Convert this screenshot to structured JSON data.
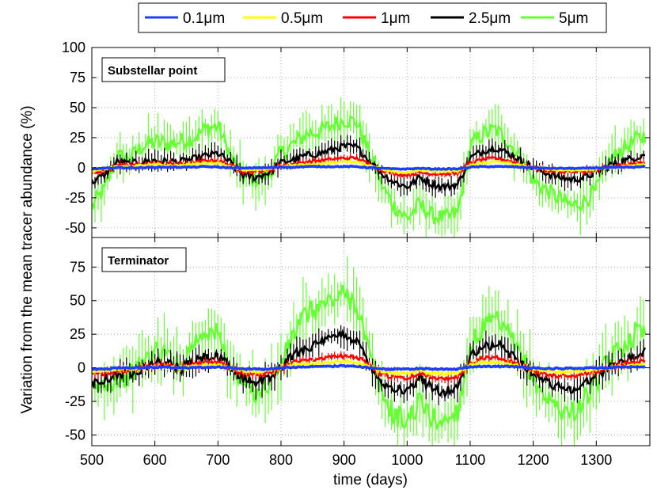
{
  "chart_data": {
    "type": "line",
    "xlabel": "time (days)",
    "ylabel": "Variation from the mean tracer abundance (%)",
    "xlim": [
      500,
      1385
    ],
    "xticks": [
      "500",
      "600",
      "700",
      "800",
      "900",
      "1000",
      "1100",
      "1200",
      "1300"
    ],
    "grid": true,
    "legend": {
      "placement": "top-center",
      "entries": [
        {
          "label": "0.1μm",
          "color": "#1f3fff"
        },
        {
          "label": "0.5μm",
          "color": "#ffff00"
        },
        {
          "label": "1μm",
          "color": "#ff0000"
        },
        {
          "label": "2.5μm",
          "color": "#000000"
        },
        {
          "label": "5μm",
          "color": "#66ff33"
        }
      ]
    },
    "x": [
      500,
      520,
      540,
      560,
      580,
      600,
      620,
      640,
      660,
      680,
      700,
      720,
      740,
      760,
      780,
      800,
      820,
      840,
      860,
      880,
      900,
      920,
      940,
      960,
      980,
      1000,
      1020,
      1040,
      1060,
      1080,
      1100,
      1120,
      1140,
      1160,
      1180,
      1200,
      1220,
      1240,
      1260,
      1280,
      1300,
      1320,
      1340,
      1360,
      1380
    ],
    "panels": [
      {
        "label": "Substellar point",
        "ylim": [
          -58,
          100
        ],
        "yticks": [
          "100",
          "75",
          "50",
          "25",
          "0",
          "-25",
          "-50"
        ],
        "series": [
          {
            "name": "0.1μm",
            "values": [
              -1,
              -0.5,
              0,
              0,
              0,
              0.5,
              0.5,
              0.5,
              0.5,
              1,
              0.5,
              0,
              -0.5,
              0,
              0,
              0.5,
              0.5,
              1,
              1,
              1,
              1,
              1,
              0,
              -0.5,
              -1,
              -1,
              -0.5,
              -1,
              -1,
              -1,
              0.5,
              1,
              1,
              1,
              0.5,
              0,
              -0.5,
              -0.5,
              -0.5,
              -0.5,
              0,
              0,
              0.5,
              0.5,
              1
            ]
          },
          {
            "name": "0.5μm",
            "values": [
              -3,
              -1,
              1,
              1,
              2,
              3,
              2,
              2,
              3,
              4,
              4,
              1,
              -2,
              -2,
              -1,
              1,
              2,
              3,
              3,
              4,
              5,
              5,
              2,
              -1,
              -3,
              -4,
              -2,
              -3,
              -3,
              -3,
              2,
              4,
              5,
              4,
              2,
              0,
              -1,
              -2,
              -2,
              -2,
              -1,
              0,
              1,
              2,
              3
            ]
          },
          {
            "name": "1μm",
            "values": [
              -5,
              -2,
              2,
              2,
              3,
              4,
              3,
              3,
              4,
              6,
              6,
              2,
              -3,
              -3,
              -2,
              2,
              3,
              5,
              6,
              7,
              8,
              8,
              3,
              -2,
              -5,
              -6,
              -4,
              -5,
              -5,
              -5,
              4,
              7,
              8,
              6,
              3,
              0,
              -2,
              -3,
              -3,
              -3,
              -2,
              1,
              2,
              3,
              5
            ]
          },
          {
            "name": "2.5μm",
            "values": [
              -12,
              -6,
              5,
              3,
              5,
              6,
              5,
              5,
              7,
              10,
              12,
              4,
              -6,
              -8,
              -4,
              4,
              7,
              10,
              12,
              15,
              18,
              17,
              6,
              -5,
              -12,
              -16,
              -8,
              -14,
              -16,
              -14,
              8,
              14,
              17,
              12,
              6,
              0,
              -4,
              -8,
              -10,
              -8,
              -4,
              2,
              5,
              8,
              12
            ]
          },
          {
            "name": "5μm",
            "values": [
              -32,
              -18,
              10,
              8,
              18,
              22,
              20,
              22,
              25,
              32,
              35,
              10,
              -8,
              -10,
              -6,
              12,
              20,
              28,
              30,
              35,
              40,
              38,
              12,
              -15,
              -32,
              -42,
              -30,
              -40,
              -42,
              -38,
              18,
              28,
              32,
              22,
              8,
              -10,
              -18,
              -25,
              -32,
              -28,
              -18,
              5,
              15,
              22,
              28
            ]
          }
        ]
      },
      {
        "label": "Terminator",
        "ylim": [
          -58,
          97
        ],
        "yticks": [
          "75",
          "50",
          "25",
          "0",
          "-25",
          "-50"
        ],
        "series": [
          {
            "name": "0.1μm",
            "values": [
              -1,
              -1,
              0,
              0,
              0,
              0.5,
              0.5,
              0,
              0,
              0.5,
              0.5,
              0,
              -1,
              -1,
              -1,
              0,
              0.5,
              1,
              1,
              1,
              1.5,
              1,
              0,
              -1,
              -1,
              -1,
              -0.5,
              -1,
              -1,
              -1,
              0.5,
              1,
              1,
              1,
              0.5,
              0,
              -0.5,
              -0.5,
              -0.5,
              -0.5,
              0,
              0,
              0.5,
              0.5,
              1
            ]
          },
          {
            "name": "0.5μm",
            "values": [
              -3,
              -2,
              -1,
              -1,
              0,
              1,
              1,
              0,
              1,
              2,
              2,
              0,
              -2,
              -3,
              -2,
              0,
              2,
              3,
              3,
              4,
              5,
              4,
              1,
              -3,
              -4,
              -4,
              -2,
              -4,
              -4,
              -4,
              2,
              4,
              4,
              3,
              1,
              -1,
              -2,
              -3,
              -3,
              -2,
              -1,
              0,
              1,
              2,
              3
            ]
          },
          {
            "name": "1μm",
            "values": [
              -5,
              -4,
              -2,
              -2,
              0,
              2,
              2,
              0,
              2,
              4,
              4,
              0,
              -4,
              -5,
              -4,
              0,
              4,
              6,
              7,
              8,
              9,
              8,
              2,
              -5,
              -7,
              -8,
              -4,
              -7,
              -8,
              -7,
              4,
              7,
              8,
              6,
              2,
              -2,
              -5,
              -6,
              -6,
              -5,
              -2,
              0,
              2,
              4,
              6
            ]
          },
          {
            "name": "2.5μm",
            "values": [
              -10,
              -8,
              -5,
              -4,
              0,
              4,
              4,
              -1,
              4,
              8,
              8,
              0,
              -8,
              -10,
              -8,
              0,
              10,
              15,
              18,
              22,
              25,
              20,
              4,
              -12,
              -15,
              -18,
              -8,
              -15,
              -18,
              -14,
              8,
              15,
              18,
              12,
              4,
              -4,
              -10,
              -14,
              -16,
              -12,
              -6,
              0,
              5,
              8,
              12
            ]
          },
          {
            "name": "5μm",
            "values": [
              -20,
              -12,
              -8,
              -6,
              4,
              12,
              10,
              0,
              18,
              28,
              25,
              0,
              -12,
              -18,
              -12,
              2,
              25,
              40,
              45,
              50,
              55,
              48,
              10,
              -20,
              -35,
              -40,
              -25,
              -38,
              -40,
              -32,
              15,
              30,
              35,
              25,
              8,
              -8,
              -22,
              -30,
              -34,
              -25,
              -10,
              5,
              15,
              25,
              30
            ]
          }
        ]
      }
    ]
  }
}
